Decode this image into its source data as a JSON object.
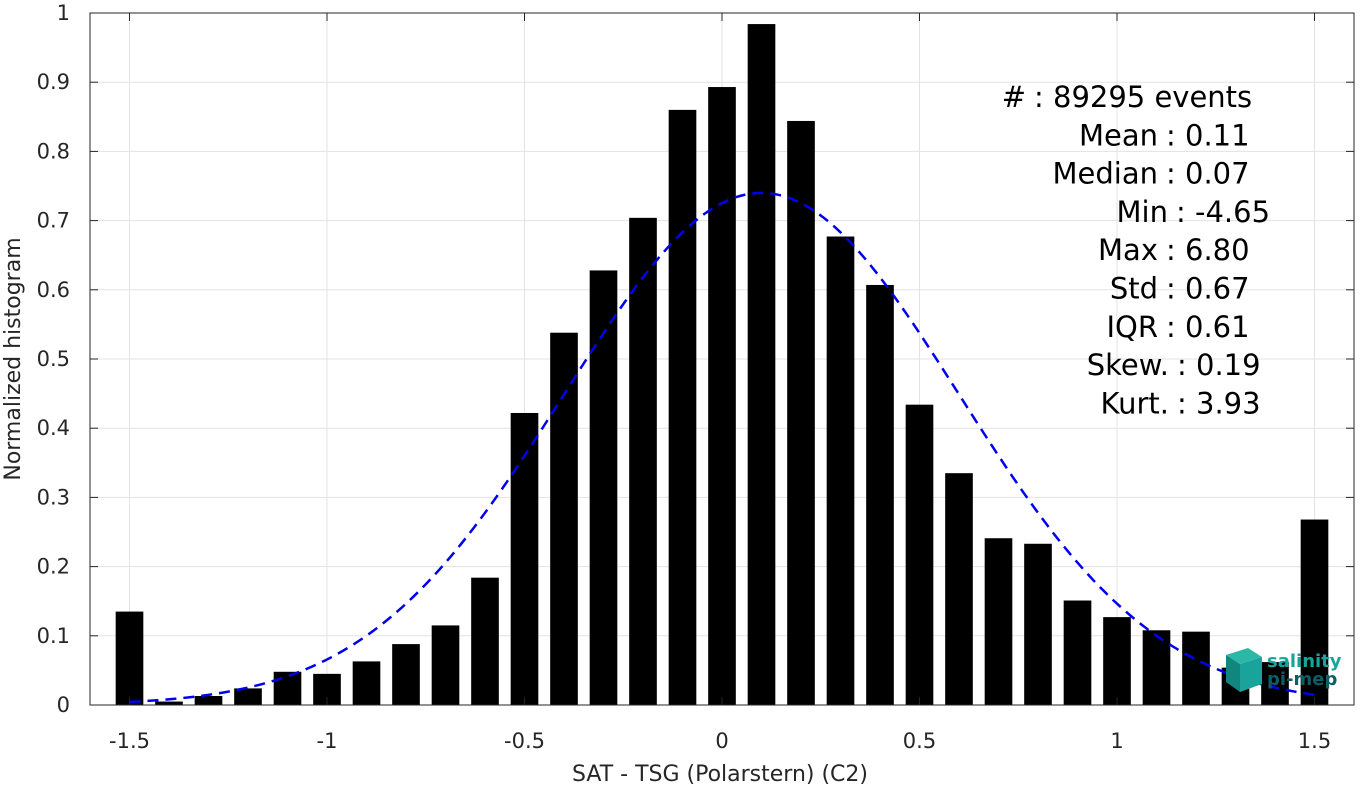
{
  "chart_data": {
    "type": "bar",
    "xlabel": "SAT - TSG (Polarstern) (C2)",
    "ylabel": "Normalized histogram",
    "xlim": [
      -1.6,
      1.6
    ],
    "ylim": [
      0,
      1
    ],
    "xticks": [
      -1.5,
      -1,
      -0.5,
      0,
      0.5,
      1,
      1.5
    ],
    "xtick_labels": [
      "-1.5",
      "-1",
      "-0.5",
      "0",
      "0.5",
      "1",
      "1.5"
    ],
    "yticks": [
      0,
      0.1,
      0.2,
      0.3,
      0.4,
      0.5,
      0.6,
      0.7,
      0.8,
      0.9,
      1
    ],
    "ytick_labels": [
      "0",
      "0.1",
      "0.2",
      "0.3",
      "0.4",
      "0.5",
      "0.6",
      "0.7",
      "0.8",
      "0.9",
      "1"
    ],
    "grid": true,
    "bar_width": 0.07,
    "bar_color": "#000000",
    "bars": [
      {
        "x": -1.5,
        "y": 0.135
      },
      {
        "x": -1.4,
        "y": 0.005
      },
      {
        "x": -1.3,
        "y": 0.013
      },
      {
        "x": -1.2,
        "y": 0.024
      },
      {
        "x": -1.1,
        "y": 0.048
      },
      {
        "x": -1.0,
        "y": 0.045
      },
      {
        "x": -0.9,
        "y": 0.063
      },
      {
        "x": -0.8,
        "y": 0.088
      },
      {
        "x": -0.7,
        "y": 0.115
      },
      {
        "x": -0.6,
        "y": 0.184
      },
      {
        "x": -0.5,
        "y": 0.422
      },
      {
        "x": -0.4,
        "y": 0.538
      },
      {
        "x": -0.3,
        "y": 0.628
      },
      {
        "x": -0.2,
        "y": 0.704
      },
      {
        "x": -0.1,
        "y": 0.86
      },
      {
        "x": 0.0,
        "y": 0.893
      },
      {
        "x": 0.1,
        "y": 0.984
      },
      {
        "x": 0.2,
        "y": 0.844
      },
      {
        "x": 0.3,
        "y": 0.677
      },
      {
        "x": 0.4,
        "y": 0.607
      },
      {
        "x": 0.5,
        "y": 0.434
      },
      {
        "x": 0.6,
        "y": 0.335
      },
      {
        "x": 0.7,
        "y": 0.241
      },
      {
        "x": 0.8,
        "y": 0.233
      },
      {
        "x": 0.9,
        "y": 0.151
      },
      {
        "x": 1.0,
        "y": 0.127
      },
      {
        "x": 1.1,
        "y": 0.108
      },
      {
        "x": 1.2,
        "y": 0.106
      },
      {
        "x": 1.3,
        "y": 0.054
      },
      {
        "x": 1.4,
        "y": 0.062
      },
      {
        "x": 1.5,
        "y": 0.268
      }
    ],
    "fit_curve": {
      "style": "dashed",
      "color": "#0000ee",
      "mean": 0.1,
      "std": 0.5,
      "peak": 0.74,
      "x_range": [
        -1.5,
        1.5
      ]
    },
    "stats": [
      {
        "label": "#  : 89295 events"
      },
      {
        "label": "Mean : 0.11"
      },
      {
        "label": "Median : 0.07"
      },
      {
        "label": "Min : -4.65"
      },
      {
        "label": "Max : 6.80"
      },
      {
        "label": "Std : 0.67"
      },
      {
        "label": "IQR : 0.61"
      },
      {
        "label": "Skew. : 0.19"
      },
      {
        "label": "Kurt. : 3.93"
      }
    ]
  },
  "logo": {
    "line1": "salinity",
    "line2": "pi-mep",
    "color_primary": "#1aa39a",
    "color_dark": "#0d5e66"
  }
}
